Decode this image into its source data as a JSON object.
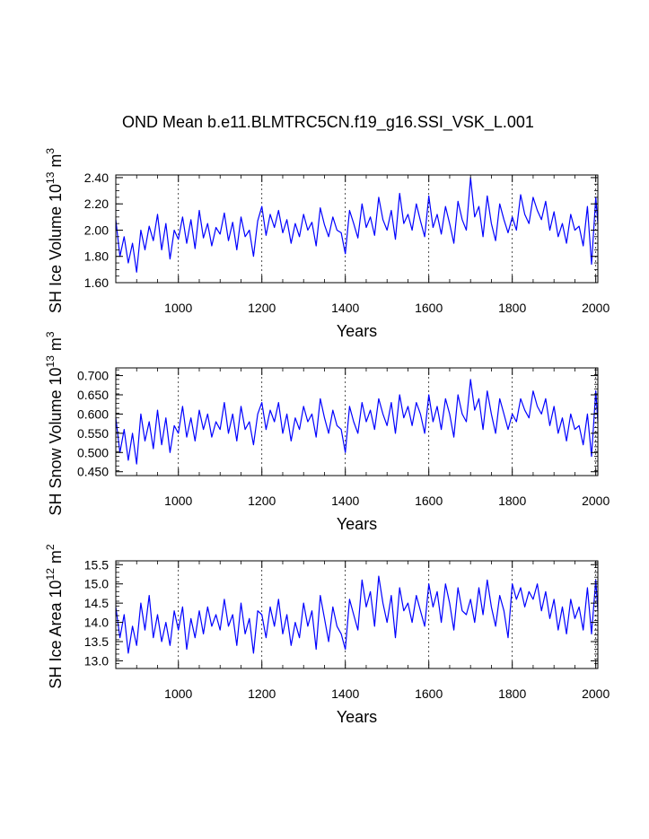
{
  "page": {
    "title": "OND Mean b.e11.BLMTRC5CN.f19_g16.SSI_VSK_L.001"
  },
  "chart_data": [
    {
      "type": "line",
      "title": "",
      "ylabel": {
        "main": "SH Ice Volume 10",
        "exp": "13",
        "unit": " m",
        "unit_exp": "3"
      },
      "xlabel": "Years",
      "xlim": [
        850,
        2005
      ],
      "ylim": [
        1.6,
        2.42
      ],
      "xticks": [
        1000,
        1200,
        1400,
        1600,
        1800,
        2000
      ],
      "xtick_labels": [
        "1000",
        "1200",
        "1400",
        "1600",
        "1800",
        "2000"
      ],
      "yticks": [
        1.6,
        1.8,
        2.0,
        2.2,
        2.4
      ],
      "ytick_labels": [
        "1.60",
        "1.80",
        "2.00",
        "2.20",
        "2.40"
      ],
      "grid_x": "dashed at major ticks",
      "series": [
        {
          "name": "SH Ice Volume",
          "color": "#0000ff",
          "x": [
            850,
            860,
            870,
            880,
            890,
            900,
            910,
            920,
            930,
            940,
            950,
            960,
            970,
            980,
            990,
            1000,
            1010,
            1020,
            1030,
            1040,
            1050,
            1060,
            1070,
            1080,
            1090,
            1100,
            1110,
            1120,
            1130,
            1140,
            1150,
            1160,
            1170,
            1180,
            1190,
            1200,
            1210,
            1220,
            1230,
            1240,
            1250,
            1260,
            1270,
            1280,
            1290,
            1300,
            1310,
            1320,
            1330,
            1340,
            1350,
            1360,
            1370,
            1380,
            1390,
            1400,
            1410,
            1420,
            1430,
            1440,
            1450,
            1460,
            1470,
            1480,
            1490,
            1500,
            1510,
            1520,
            1530,
            1540,
            1550,
            1560,
            1570,
            1580,
            1590,
            1600,
            1610,
            1620,
            1630,
            1640,
            1650,
            1660,
            1670,
            1680,
            1690,
            1700,
            1710,
            1720,
            1730,
            1740,
            1750,
            1760,
            1770,
            1780,
            1790,
            1800,
            1810,
            1820,
            1830,
            1840,
            1850,
            1860,
            1870,
            1880,
            1890,
            1900,
            1910,
            1920,
            1930,
            1940,
            1950,
            1960,
            1970,
            1980,
            1990,
            2000,
            2005
          ],
          "y": [
            2.08,
            1.8,
            1.95,
            1.75,
            1.9,
            1.68,
            2.0,
            1.85,
            2.03,
            1.92,
            2.12,
            1.85,
            2.05,
            1.78,
            2.0,
            1.93,
            2.1,
            1.9,
            2.08,
            1.86,
            2.15,
            1.94,
            2.05,
            1.88,
            2.02,
            1.97,
            2.13,
            1.92,
            2.06,
            1.85,
            2.1,
            1.95,
            2.0,
            1.8,
            2.07,
            2.18,
            1.96,
            2.12,
            2.02,
            2.15,
            1.98,
            2.08,
            1.9,
            2.05,
            1.95,
            2.12,
            2.0,
            2.06,
            1.88,
            2.17,
            2.04,
            1.95,
            2.1,
            2.0,
            1.98,
            1.82,
            2.15,
            2.05,
            1.94,
            2.2,
            2.02,
            2.1,
            1.96,
            2.25,
            2.08,
            2.0,
            2.15,
            1.93,
            2.28,
            2.05,
            2.12,
            2.0,
            2.2,
            2.07,
            1.95,
            2.26,
            2.02,
            2.12,
            1.97,
            2.18,
            2.05,
            1.9,
            2.22,
            2.08,
            2.0,
            2.4,
            2.1,
            2.18,
            1.95,
            2.26,
            2.05,
            1.92,
            2.2,
            2.08,
            1.98,
            2.1,
            2.0,
            2.27,
            2.12,
            2.05,
            2.25,
            2.15,
            2.08,
            2.22,
            2.0,
            2.14,
            1.95,
            2.05,
            1.9,
            2.12,
            2.0,
            2.03,
            1.88,
            2.18,
            1.74,
            2.25,
            2.05
          ]
        }
      ]
    },
    {
      "type": "line",
      "title": "",
      "ylabel": {
        "main": "SH Snow Volume 10",
        "exp": "13",
        "unit": " m",
        "unit_exp": "3"
      },
      "xlabel": "Years",
      "xlim": [
        850,
        2005
      ],
      "ylim": [
        0.44,
        0.72
      ],
      "xticks": [
        1000,
        1200,
        1400,
        1600,
        1800,
        2000
      ],
      "xtick_labels": [
        "1000",
        "1200",
        "1400",
        "1600",
        "1800",
        "2000"
      ],
      "yticks": [
        0.45,
        0.5,
        0.55,
        0.6,
        0.65,
        0.7
      ],
      "ytick_labels": [
        "0.450",
        "0.500",
        "0.550",
        "0.600",
        "0.650",
        "0.700"
      ],
      "grid_x": "dashed at major ticks",
      "series": [
        {
          "name": "SH Snow Volume",
          "color": "#0000ff",
          "x": [
            850,
            860,
            870,
            880,
            890,
            900,
            910,
            920,
            930,
            940,
            950,
            960,
            970,
            980,
            990,
            1000,
            1010,
            1020,
            1030,
            1040,
            1050,
            1060,
            1070,
            1080,
            1090,
            1100,
            1110,
            1120,
            1130,
            1140,
            1150,
            1160,
            1170,
            1180,
            1190,
            1200,
            1210,
            1220,
            1230,
            1240,
            1250,
            1260,
            1270,
            1280,
            1290,
            1300,
            1310,
            1320,
            1330,
            1340,
            1350,
            1360,
            1370,
            1380,
            1390,
            1400,
            1410,
            1420,
            1430,
            1440,
            1450,
            1460,
            1470,
            1480,
            1490,
            1500,
            1510,
            1520,
            1530,
            1540,
            1550,
            1560,
            1570,
            1580,
            1590,
            1600,
            1610,
            1620,
            1630,
            1640,
            1650,
            1660,
            1670,
            1680,
            1690,
            1700,
            1710,
            1720,
            1730,
            1740,
            1750,
            1760,
            1770,
            1780,
            1790,
            1800,
            1810,
            1820,
            1830,
            1840,
            1850,
            1860,
            1870,
            1880,
            1890,
            1900,
            1910,
            1920,
            1930,
            1940,
            1950,
            1960,
            1970,
            1980,
            1990,
            2000,
            2005
          ],
          "y": [
            0.59,
            0.5,
            0.56,
            0.48,
            0.55,
            0.47,
            0.6,
            0.53,
            0.58,
            0.51,
            0.61,
            0.52,
            0.59,
            0.5,
            0.57,
            0.55,
            0.62,
            0.54,
            0.59,
            0.53,
            0.61,
            0.56,
            0.6,
            0.54,
            0.58,
            0.56,
            0.63,
            0.55,
            0.6,
            0.53,
            0.62,
            0.56,
            0.58,
            0.52,
            0.6,
            0.63,
            0.56,
            0.61,
            0.58,
            0.63,
            0.55,
            0.6,
            0.53,
            0.59,
            0.56,
            0.62,
            0.58,
            0.6,
            0.54,
            0.64,
            0.59,
            0.55,
            0.61,
            0.57,
            0.56,
            0.5,
            0.62,
            0.58,
            0.55,
            0.63,
            0.58,
            0.61,
            0.56,
            0.64,
            0.6,
            0.57,
            0.63,
            0.55,
            0.65,
            0.59,
            0.62,
            0.57,
            0.63,
            0.6,
            0.55,
            0.65,
            0.58,
            0.62,
            0.56,
            0.64,
            0.6,
            0.54,
            0.65,
            0.6,
            0.58,
            0.69,
            0.61,
            0.64,
            0.56,
            0.66,
            0.6,
            0.55,
            0.64,
            0.6,
            0.56,
            0.6,
            0.58,
            0.64,
            0.61,
            0.59,
            0.66,
            0.62,
            0.6,
            0.64,
            0.57,
            0.62,
            0.55,
            0.59,
            0.53,
            0.6,
            0.56,
            0.57,
            0.52,
            0.6,
            0.49,
            0.66,
            0.58
          ]
        }
      ]
    },
    {
      "type": "line",
      "title": "",
      "ylabel": {
        "main": "SH Ice Area 10",
        "exp": "12",
        "unit": " m",
        "unit_exp": "2"
      },
      "xlabel": "Years",
      "xlim": [
        850,
        2005
      ],
      "ylim": [
        12.8,
        15.6
      ],
      "xticks": [
        1000,
        1200,
        1400,
        1600,
        1800,
        2000
      ],
      "xtick_labels": [
        "1000",
        "1200",
        "1400",
        "1600",
        "1800",
        "2000"
      ],
      "yticks": [
        13.0,
        13.5,
        14.0,
        14.5,
        15.0,
        15.5
      ],
      "ytick_labels": [
        "13.0",
        "13.5",
        "14.0",
        "14.5",
        "15.0",
        "15.5"
      ],
      "grid_x": "dashed at major ticks",
      "series": [
        {
          "name": "SH Ice Area",
          "color": "#0000ff",
          "x": [
            850,
            860,
            870,
            880,
            890,
            900,
            910,
            920,
            930,
            940,
            950,
            960,
            970,
            980,
            990,
            1000,
            1010,
            1020,
            1030,
            1040,
            1050,
            1060,
            1070,
            1080,
            1090,
            1100,
            1110,
            1120,
            1130,
            1140,
            1150,
            1160,
            1170,
            1180,
            1190,
            1200,
            1210,
            1220,
            1230,
            1240,
            1250,
            1260,
            1270,
            1280,
            1290,
            1300,
            1310,
            1320,
            1330,
            1340,
            1350,
            1360,
            1370,
            1380,
            1390,
            1400,
            1410,
            1420,
            1430,
            1440,
            1450,
            1460,
            1470,
            1480,
            1490,
            1500,
            1510,
            1520,
            1530,
            1540,
            1550,
            1560,
            1570,
            1580,
            1590,
            1600,
            1610,
            1620,
            1630,
            1640,
            1650,
            1660,
            1670,
            1680,
            1690,
            1700,
            1710,
            1720,
            1730,
            1740,
            1750,
            1760,
            1770,
            1780,
            1790,
            1800,
            1810,
            1820,
            1830,
            1840,
            1850,
            1860,
            1870,
            1880,
            1890,
            1900,
            1910,
            1920,
            1930,
            1940,
            1950,
            1960,
            1970,
            1980,
            1990,
            2000,
            2005
          ],
          "y": [
            14.4,
            13.6,
            14.2,
            13.2,
            13.9,
            13.4,
            14.5,
            13.8,
            14.7,
            13.6,
            14.2,
            13.5,
            14.0,
            13.4,
            14.3,
            13.8,
            14.4,
            13.3,
            14.1,
            13.6,
            14.3,
            13.7,
            14.4,
            13.9,
            14.2,
            13.8,
            14.6,
            13.9,
            14.2,
            13.4,
            14.5,
            13.7,
            14.1,
            13.2,
            14.3,
            14.2,
            13.6,
            14.4,
            13.9,
            14.6,
            13.7,
            14.2,
            13.4,
            14.0,
            13.6,
            14.5,
            13.9,
            14.3,
            13.3,
            14.7,
            14.1,
            13.5,
            14.4,
            13.9,
            13.7,
            13.3,
            14.6,
            14.2,
            13.8,
            15.1,
            14.4,
            14.8,
            13.9,
            15.2,
            14.5,
            14.0,
            14.7,
            13.6,
            14.9,
            14.3,
            14.5,
            14.0,
            14.7,
            14.3,
            13.9,
            15.0,
            14.4,
            14.8,
            14.0,
            15.0,
            14.5,
            13.8,
            14.9,
            14.3,
            14.2,
            14.6,
            14.0,
            14.9,
            14.2,
            15.1,
            14.4,
            13.9,
            14.7,
            14.3,
            13.6,
            15.0,
            14.6,
            14.9,
            14.4,
            14.8,
            14.6,
            15.0,
            14.3,
            14.8,
            14.1,
            14.6,
            13.8,
            14.4,
            13.7,
            14.6,
            14.1,
            14.4,
            13.8,
            14.9,
            13.7,
            15.1,
            14.3
          ]
        }
      ]
    }
  ]
}
